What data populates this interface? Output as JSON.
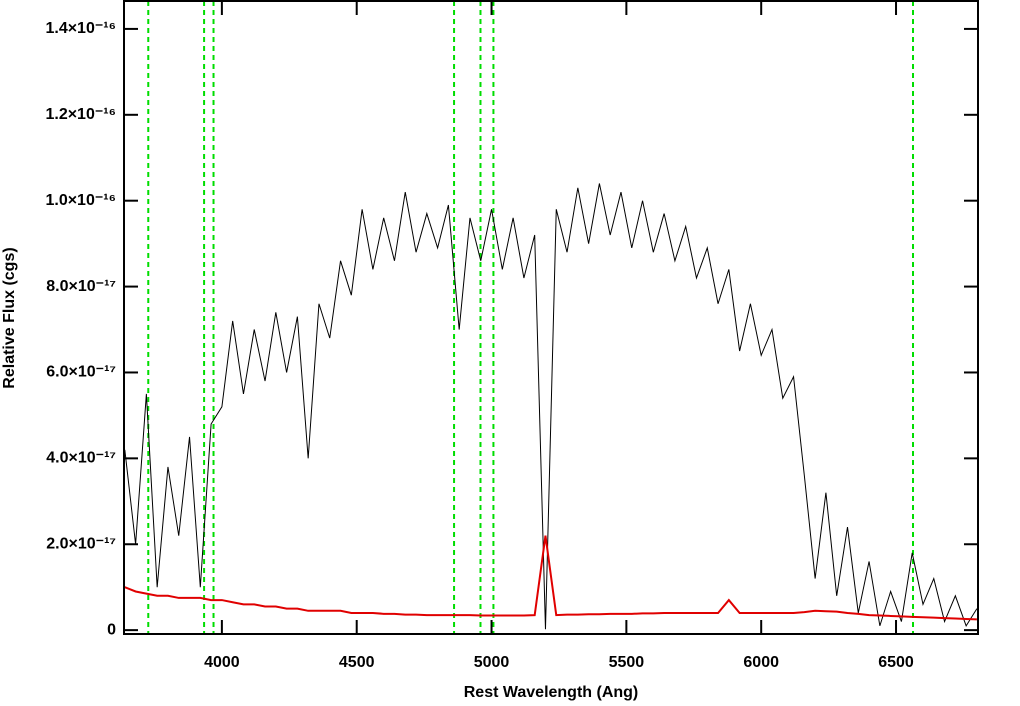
{
  "chart_data": {
    "type": "line",
    "x_label": "Rest Wavelength (Ang)",
    "y_label": "Relative Flux (cgs)",
    "x": [
      3640,
      3680,
      3720,
      3760,
      3800,
      3840,
      3880,
      3920,
      3960,
      4000,
      4040,
      4080,
      4120,
      4160,
      4200,
      4240,
      4280,
      4320,
      4360,
      4400,
      4440,
      4480,
      4520,
      4560,
      4600,
      4640,
      4680,
      4720,
      4760,
      4800,
      4840,
      4880,
      4920,
      4960,
      5000,
      5040,
      5080,
      5120,
      5160,
      5200,
      5240,
      5280,
      5320,
      5360,
      5400,
      5440,
      5480,
      5520,
      5560,
      5600,
      5640,
      5680,
      5720,
      5760,
      5800,
      5840,
      5880,
      5920,
      5960,
      6000,
      6040,
      6080,
      6120,
      6160,
      6200,
      6240,
      6280,
      6320,
      6360,
      6400,
      6440,
      6480,
      6520,
      6560,
      6600,
      6640,
      6680,
      6720,
      6760,
      6800
    ],
    "series": [
      {
        "color": "#000000",
        "values": [
          4.2e-17,
          2e-17,
          5.5e-17,
          1e-17,
          3.8e-17,
          2.2e-17,
          4.5e-17,
          1e-17,
          4.8e-17,
          5.2e-17,
          7.2e-17,
          5.5e-17,
          7e-17,
          5.8e-17,
          7.4e-17,
          6e-17,
          7.3e-17,
          4e-17,
          7.6e-17,
          6.8e-17,
          8.6e-17,
          7.8e-17,
          9.8e-17,
          8.4e-17,
          9.6e-17,
          8.6e-17,
          1.02e-16,
          8.8e-17,
          9.7e-17,
          8.9e-17,
          9.9e-17,
          7e-17,
          9.6e-17,
          8.6e-17,
          9.8e-17,
          8.4e-17,
          9.6e-17,
          8.2e-17,
          9.2e-17,
          2e-19,
          9.8e-17,
          8.8e-17,
          1.03e-16,
          9e-17,
          1.04e-16,
          9.2e-17,
          1.02e-16,
          8.9e-17,
          1e-16,
          8.8e-17,
          9.7e-17,
          8.6e-17,
          9.4e-17,
          8.2e-17,
          8.9e-17,
          7.6e-17,
          8.4e-17,
          6.5e-17,
          7.6e-17,
          6.4e-17,
          7e-17,
          5.4e-17,
          5.9e-17,
          3.6e-17,
          1.2e-17,
          3.2e-17,
          8e-18,
          2.4e-17,
          4e-18,
          1.6e-17,
          1e-18,
          9e-18,
          2e-18,
          1.8e-17,
          6e-18,
          1.2e-17,
          2e-18,
          8e-18,
          1e-18,
          5e-18
        ]
      },
      {
        "color": "#e00000",
        "values": [
          1e-17,
          9e-18,
          8.5e-18,
          8e-18,
          8e-18,
          7.5e-18,
          7.5e-18,
          7.5e-18,
          7e-18,
          7e-18,
          6.5e-18,
          6e-18,
          6e-18,
          5.5e-18,
          5.5e-18,
          5e-18,
          5e-18,
          4.5e-18,
          4.5e-18,
          4.5e-18,
          4.5e-18,
          4e-18,
          4e-18,
          4e-18,
          3.8e-18,
          3.8e-18,
          3.6e-18,
          3.6e-18,
          3.5e-18,
          3.5e-18,
          3.5e-18,
          3.5e-18,
          3.5e-18,
          3.4e-18,
          3.4e-18,
          3.4e-18,
          3.4e-18,
          3.4e-18,
          3.5e-18,
          2.2e-17,
          3.5e-18,
          3.6e-18,
          3.6e-18,
          3.7e-18,
          3.7e-18,
          3.8e-18,
          3.8e-18,
          3.8e-18,
          3.9e-18,
          3.9e-18,
          4e-18,
          4e-18,
          4e-18,
          4e-18,
          4e-18,
          4e-18,
          7e-18,
          4e-18,
          4e-18,
          4e-18,
          4e-18,
          4e-18,
          4e-18,
          4.2e-18,
          4.5e-18,
          4.4e-18,
          4.3e-18,
          4e-18,
          3.8e-18,
          3.5e-18,
          3.4e-18,
          3.3e-18,
          3.2e-18,
          3.1e-18,
          3e-18,
          2.9e-18,
          2.8e-18,
          2.7e-18,
          2.6e-18,
          2.5e-18
        ]
      }
    ],
    "vlines": [
      3727,
      3934,
      3969,
      4861,
      4959,
      5007,
      6563
    ],
    "vline_color": "#00dd00",
    "xlim": [
      3637,
      6804
    ],
    "ylim": [
      -9e-19,
      1.465e-16
    ],
    "xticks": [
      4000,
      4500,
      5000,
      5500,
      6000,
      6500
    ],
    "yticks": [
      0,
      {
        "value": 2e-17,
        "label": "2.0×10⁻¹⁷"
      },
      {
        "value": 4e-17,
        "label": "4.0×10⁻¹⁷"
      },
      {
        "value": 6e-17,
        "label": "6.0×10⁻¹⁷"
      },
      {
        "value": 8e-17,
        "label": "8.0×10⁻¹⁷"
      },
      {
        "value": 1e-16,
        "label": "1.0×10⁻¹⁶"
      },
      {
        "value": 1.2e-16,
        "label": "1.2×10⁻¹⁶"
      },
      {
        "value": 1.4e-16,
        "label": "1.4×10⁻¹⁶"
      }
    ]
  }
}
